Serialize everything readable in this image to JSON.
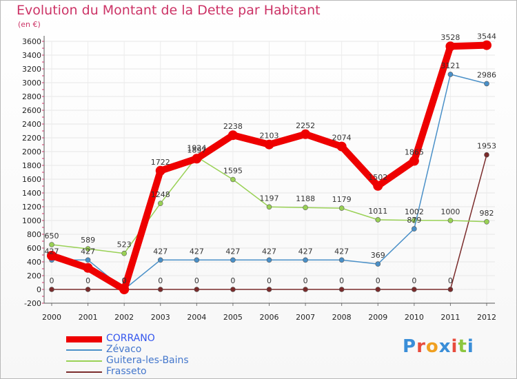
{
  "title": "Evolution du Montant de la Dette par Habitant",
  "unit": "(en €)",
  "logo": "Proxiti",
  "chart_data": {
    "type": "line",
    "title": "Evolution du Montant de la Dette par Habitant",
    "ylabel": "(en €)",
    "x": [
      "2000",
      "2001",
      "2002",
      "2003",
      "2004",
      "2005",
      "2006",
      "2007",
      "2008",
      "2009",
      "2010",
      "2011",
      "2012"
    ],
    "ylim": [
      -200,
      3600
    ],
    "yticks": [
      -200,
      0,
      200,
      400,
      600,
      800,
      1000,
      1200,
      1400,
      1600,
      1800,
      2000,
      2200,
      2400,
      2600,
      2800,
      3000,
      3200,
      3400,
      3600
    ],
    "grid": true,
    "legend_position": "bottom-left",
    "series": [
      {
        "name": "CORRANO",
        "color": "#ee0000",
        "values": [
          490,
          312,
          0,
          1722,
          1897,
          2238,
          2103,
          2252,
          2074,
          1502,
          1865,
          3528,
          3544
        ],
        "labels": [
          null,
          null,
          "0",
          "1722",
          "1897",
          "2238",
          "2103",
          "2252",
          "2074",
          "1502",
          "1865",
          "3528",
          "3544"
        ]
      },
      {
        "name": "Zévaco",
        "color": "#4a90c8",
        "values": [
          427,
          427,
          0,
          427,
          427,
          427,
          427,
          427,
          427,
          369,
          879,
          3121,
          2986
        ],
        "labels": [
          "427",
          "427",
          "0",
          "427",
          "427",
          "427",
          "427",
          "427",
          "427",
          "369",
          "879",
          "3121",
          "2986"
        ]
      },
      {
        "name": "Guitera-les-Bains",
        "color": "#99d155",
        "values": [
          650,
          589,
          523,
          1248,
          1924,
          1595,
          1197,
          1188,
          1179,
          1011,
          1002,
          1000,
          982
        ],
        "labels": [
          "650",
          "589",
          "523",
          "1248",
          "1924",
          "1595",
          "1197",
          "1188",
          "1179",
          "1011",
          "1002",
          "1000",
          "982"
        ]
      },
      {
        "name": "Frasseto",
        "color": "#7a2b2b",
        "values": [
          0,
          0,
          0,
          0,
          0,
          0,
          0,
          0,
          0,
          0,
          0,
          0,
          1953
        ],
        "labels": [
          "0",
          "0",
          "0",
          "0",
          "0",
          "0",
          "0",
          "0",
          "0",
          "0",
          "0",
          "0",
          "1953"
        ]
      }
    ]
  }
}
